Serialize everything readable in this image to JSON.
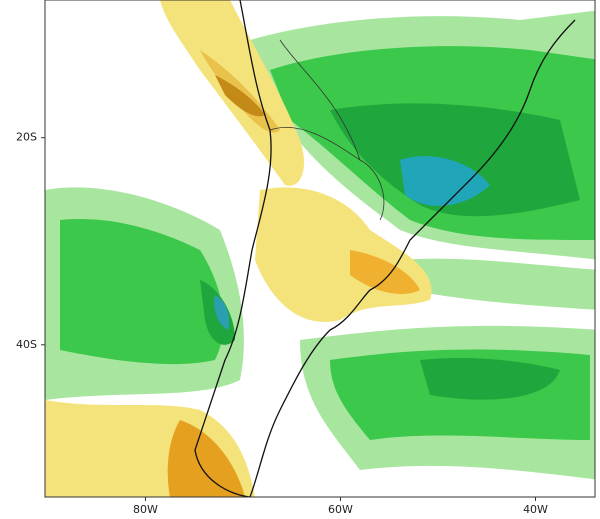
{
  "chart_data": {
    "type": "map",
    "xlim": [
      -90.3,
      -33.9
    ],
    "ylim": [
      -54.7,
      -6.7
    ],
    "xticks": [
      {
        "value": -80,
        "label": "80W"
      },
      {
        "value": -60,
        "label": "60W"
      },
      {
        "value": -40,
        "label": "40W"
      }
    ],
    "yticks": [
      {
        "value": -20,
        "label": "20S"
      },
      {
        "value": -40,
        "label": "40S"
      }
    ]
  }
}
